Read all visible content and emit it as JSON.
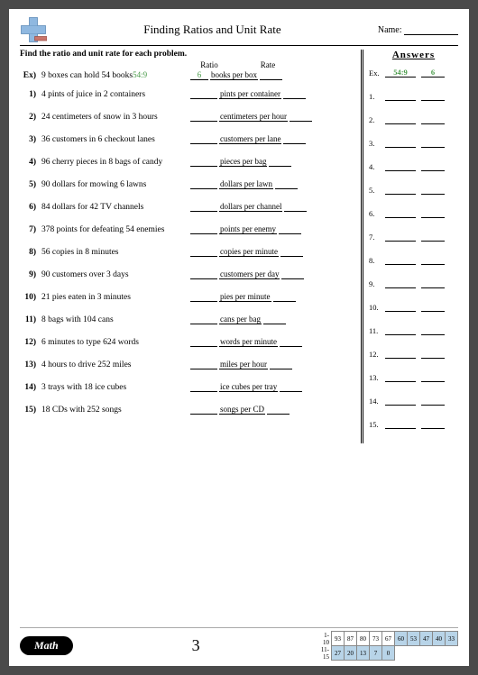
{
  "header": {
    "title": "Finding Ratios and Unit Rate",
    "name_label": "Name:"
  },
  "instruction": "Find the ratio and unit rate for each problem.",
  "col_ratio": "Ratio",
  "col_rate": "Rate",
  "example": {
    "num": "Ex)",
    "text": "9 boxes can hold 54 books",
    "ratio_inline": "54:9",
    "rate_val": "6",
    "unit": "books per box"
  },
  "problems": [
    {
      "n": "1)",
      "t": "4 pints of juice in 2 containers",
      "u": "pints per container"
    },
    {
      "n": "2)",
      "t": "24 centimeters of snow in 3 hours",
      "u": "centimeters per hour"
    },
    {
      "n": "3)",
      "t": "36 customers in 6 checkout lanes",
      "u": "customers per lane"
    },
    {
      "n": "4)",
      "t": "96 cherry pieces in 8 bags of candy",
      "u": "pieces per bag"
    },
    {
      "n": "5)",
      "t": "90 dollars for mowing 6 lawns",
      "u": "dollars per lawn"
    },
    {
      "n": "6)",
      "t": "84 dollars for 42 TV channels",
      "u": "dollars per channel"
    },
    {
      "n": "7)",
      "t": "378 points for defeating 54 enemies",
      "u": "points per enemy"
    },
    {
      "n": "8)",
      "t": "56 copies in 8 minutes",
      "u": "copies per minute"
    },
    {
      "n": "9)",
      "t": "90 customers over 3 days",
      "u": "customers per day"
    },
    {
      "n": "10)",
      "t": "21 pies eaten in 3 minutes",
      "u": "pies per minute"
    },
    {
      "n": "11)",
      "t": "8 bags with 104 cans",
      "u": "cans per bag"
    },
    {
      "n": "12)",
      "t": "6 minutes to type 624 words",
      "u": "words per minute"
    },
    {
      "n": "13)",
      "t": "4 hours to drive 252 miles",
      "u": "miles per hour"
    },
    {
      "n": "14)",
      "t": "3 trays with 18 ice cubes",
      "u": "ice cubes per tray"
    },
    {
      "n": "15)",
      "t": "18 CDs with 252 songs",
      "u": "songs per CD"
    }
  ],
  "answers_title": "Answers",
  "answers_ex": {
    "label": "Ex.",
    "ratio": "54:9",
    "rate": "6"
  },
  "answer_nums": [
    "1.",
    "2.",
    "3.",
    "4.",
    "5.",
    "6.",
    "7.",
    "8.",
    "9.",
    "10.",
    "11.",
    "12.",
    "13.",
    "14.",
    "15."
  ],
  "footer": {
    "badge": "Math",
    "page": "3",
    "range1": "1-10",
    "range2": "11-15",
    "row1": [
      "93",
      "87",
      "80",
      "73",
      "67",
      "60",
      "53",
      "47",
      "40",
      "33"
    ],
    "row2": [
      "27",
      "20",
      "13",
      "7",
      "0"
    ]
  },
  "colors": {
    "answer_green": "#4a9b4a",
    "highlight_blue": "#b8d4e8"
  }
}
